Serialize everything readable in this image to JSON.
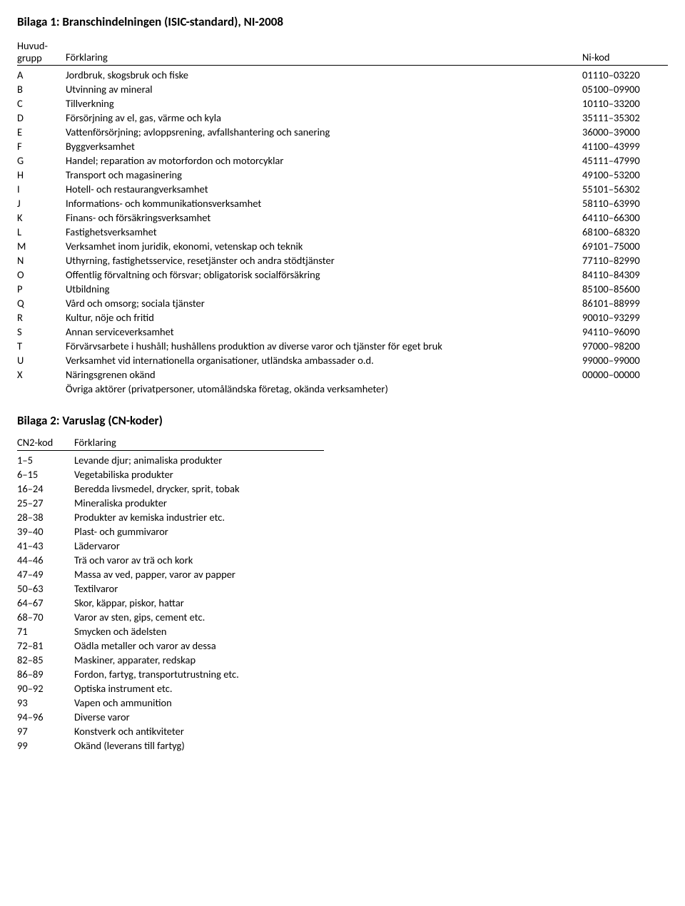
{
  "bilaga1": {
    "title": "Bilaga 1: Branschindelningen (ISIC-standard), NI-2008",
    "headers": {
      "col1_line1": "Huvud-",
      "col1_line2": "grupp",
      "col2": "Förklaring",
      "col3": "Ni-kod"
    },
    "rows": [
      {
        "code": "A",
        "desc": "Jordbruk, skogsbruk och fiske",
        "nikod": "01110–03220"
      },
      {
        "code": "B",
        "desc": "Utvinning av mineral",
        "nikod": "05100–09900"
      },
      {
        "code": "C",
        "desc": "Tillverkning",
        "nikod": "10110–33200"
      },
      {
        "code": "D",
        "desc": "Försörjning av el, gas, värme och kyla",
        "nikod": "35111–35302"
      },
      {
        "code": "E",
        "desc": "Vattenförsörjning; avloppsrening, avfallshantering och sanering",
        "nikod": "36000–39000"
      },
      {
        "code": "F",
        "desc": "Byggverksamhet",
        "nikod": "41100–43999"
      },
      {
        "code": "G",
        "desc": "Handel; reparation av motorfordon och motorcyklar",
        "nikod": "45111–47990"
      },
      {
        "code": "H",
        "desc": "Transport och magasinering",
        "nikod": "49100–53200"
      },
      {
        "code": "I",
        "desc": "Hotell- och restaurangverksamhet",
        "nikod": "55101–56302"
      },
      {
        "code": "J",
        "desc": "Informations- och kommunikationsverksamhet",
        "nikod": "58110–63990"
      },
      {
        "code": "K",
        "desc": "Finans- och försäkringsverksamhet",
        "nikod": "64110–66300"
      },
      {
        "code": "L",
        "desc": "Fastighetsverksamhet",
        "nikod": "68100–68320"
      },
      {
        "code": "M",
        "desc": "Verksamhet inom juridik, ekonomi, vetenskap och teknik",
        "nikod": "69101–75000"
      },
      {
        "code": "N",
        "desc": "Uthyrning, fastighetsservice, resetjänster och andra stödtjänster",
        "nikod": "77110–82990"
      },
      {
        "code": "O",
        "desc": "Offentlig förvaltning och försvar; obligatorisk socialförsäkring",
        "nikod": "84110–84309"
      },
      {
        "code": "P",
        "desc": "Utbildning",
        "nikod": "85100–85600"
      },
      {
        "code": "Q",
        "desc": "Vård och omsorg; sociala tjänster",
        "nikod": "86101–88999"
      },
      {
        "code": "R",
        "desc": "Kultur, nöje och fritid",
        "nikod": "90010–93299"
      },
      {
        "code": "S",
        "desc": "Annan serviceverksamhet",
        "nikod": "94110–96090"
      },
      {
        "code": "T",
        "desc": "Förvärvsarbete i hushåll; hushållens produktion av diverse varor och tjänster för eget bruk",
        "nikod": "97000–98200"
      },
      {
        "code": "U",
        "desc": "Verksamhet vid internationella organisationer, utländska ambassader o.d.",
        "nikod": "99000–99000"
      },
      {
        "code": "X",
        "desc": "Näringsgrenen okänd",
        "nikod": "00000–00000"
      },
      {
        "code": "",
        "desc": "Övriga aktörer (privatpersoner, utomåländska företag, okända verksamheter)",
        "nikod": ""
      }
    ]
  },
  "bilaga2": {
    "title": "Bilaga 2: Varuslag (CN-koder)",
    "headers": {
      "col1": "CN2-kod",
      "col2": "Förklaring"
    },
    "rows": [
      {
        "code": "1–5",
        "desc": "Levande djur; animaliska produkter"
      },
      {
        "code": "6–15",
        "desc": "Vegetabiliska produkter"
      },
      {
        "code": "16–24",
        "desc": "Beredda livsmedel, drycker, sprit, tobak"
      },
      {
        "code": "25–27",
        "desc": "Mineraliska produkter"
      },
      {
        "code": "28–38",
        "desc": "Produkter av kemiska industrier etc."
      },
      {
        "code": "39–40",
        "desc": "Plast- och gummivaror"
      },
      {
        "code": "41–43",
        "desc": "Lädervaror"
      },
      {
        "code": "44–46",
        "desc": "Trä och varor av trä och kork"
      },
      {
        "code": "47–49",
        "desc": "Massa av ved, papper, varor av papper"
      },
      {
        "code": "50–63",
        "desc": "Textilvaror"
      },
      {
        "code": "64–67",
        "desc": "Skor, käppar, piskor, hattar"
      },
      {
        "code": "68–70",
        "desc": "Varor av sten, gips, cement etc."
      },
      {
        "code": "71",
        "desc": "Smycken och ädelsten"
      },
      {
        "code": "72–81",
        "desc": "Oädla metaller och varor av dessa"
      },
      {
        "code": "82–85",
        "desc": "Maskiner, apparater, redskap"
      },
      {
        "code": "86–89",
        "desc": "Fordon, fartyg, transportutrustning etc."
      },
      {
        "code": "90–92",
        "desc": "Optiska instrument etc."
      },
      {
        "code": "93",
        "desc": "Vapen och ammunition"
      },
      {
        "code": "94–96",
        "desc": "Diverse varor"
      },
      {
        "code": "97",
        "desc": "Konstverk och antikviteter"
      },
      {
        "code": "99",
        "desc": "Okänd (leverans till fartyg)"
      }
    ]
  }
}
